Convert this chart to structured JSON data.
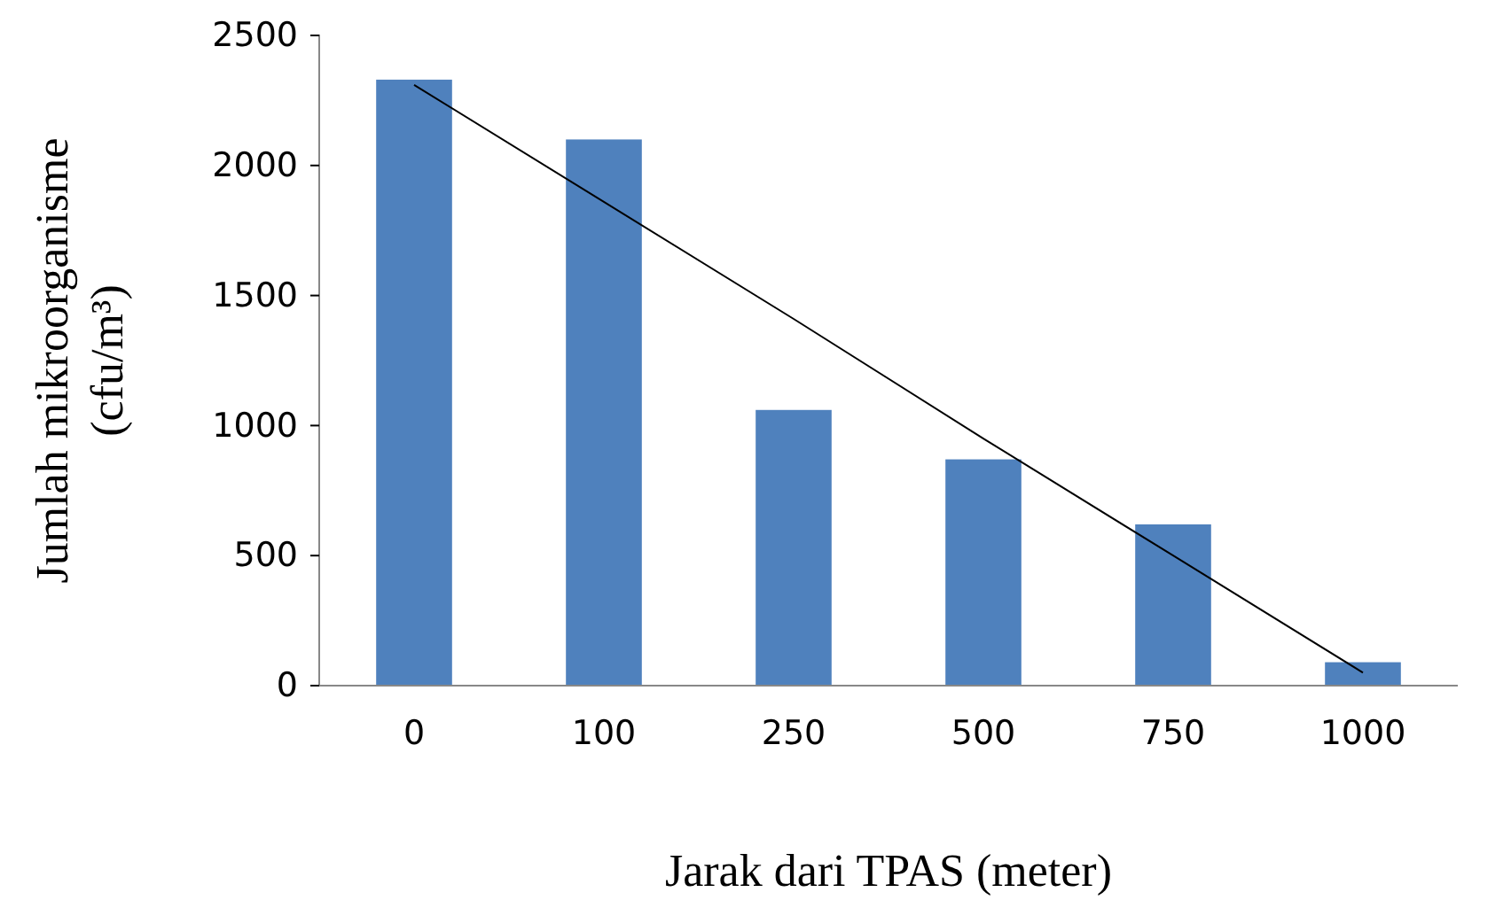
{
  "chart_data": {
    "type": "bar",
    "xlabel": "Jarak dari TPAS (meter)",
    "ylabel": "Jumlah mikroorganisme\n(cfu/m³)",
    "categories": [
      "0",
      "100",
      "250",
      "500",
      "750",
      "1000"
    ],
    "series": [
      {
        "color": "#4f81bd",
        "values": [
          2330,
          2100,
          1060,
          870,
          620,
          90
        ]
      },
      {
        "type": "line",
        "color": "#000000",
        "values": [
          2310,
          1860,
          1410,
          950,
          500,
          50
        ]
      }
    ],
    "ylim": [
      0,
      2500
    ],
    "yticks": [
      0,
      500,
      1000,
      1500,
      2000,
      2500
    ],
    "grid": false
  }
}
